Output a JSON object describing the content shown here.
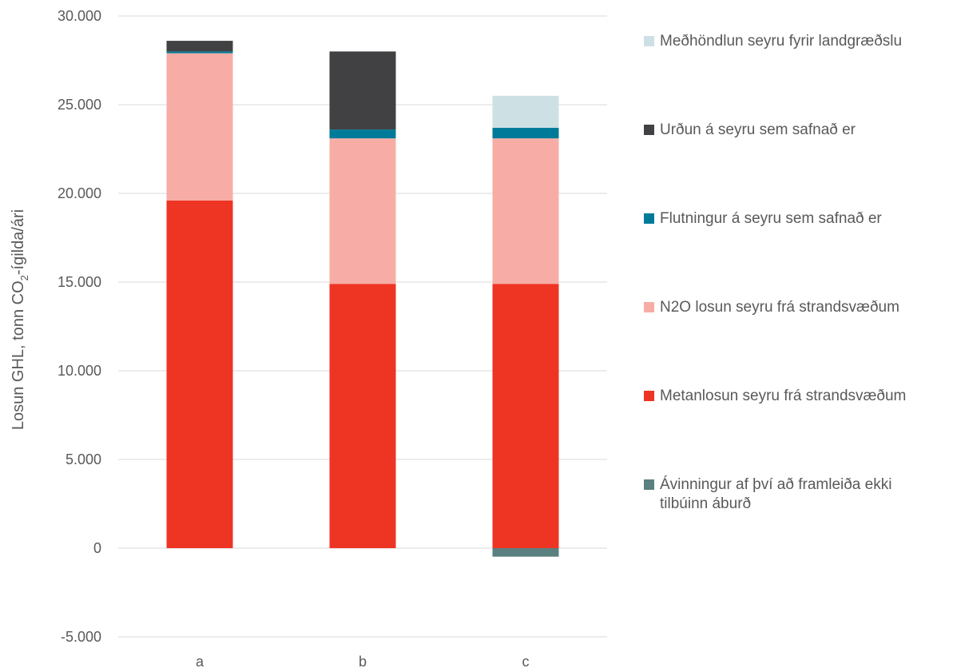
{
  "chart_data": {
    "type": "bar",
    "stacked": true,
    "title": "",
    "xlabel": "",
    "ylabel_main": "Losun GHL, tonn CO",
    "ylabel_sub": "2",
    "ylabel_tail": "-ígilda/ári",
    "ylim": [
      -5000,
      30000
    ],
    "y_ticks": [
      30000,
      25000,
      20000,
      15000,
      10000,
      5000,
      0,
      -5000
    ],
    "y_tick_labels": [
      "30.000",
      "25.000",
      "20.000",
      "15.000",
      "10.000",
      "5.000",
      "0",
      "-5.000"
    ],
    "categories": [
      "a",
      "b",
      "c"
    ],
    "grid": true,
    "legend_position": "right",
    "series": [
      {
        "name": "Ávinningur af því að framleiða ekki tilbúinn áburð",
        "color": "#5a8080",
        "values": [
          0,
          0,
          -480
        ]
      },
      {
        "name": "Metanlosun seyru frá strandsvæðum",
        "color": "#ee3524",
        "values": [
          19600,
          14900,
          14900
        ]
      },
      {
        "name": "N2O losun seyru frá strandsvæðum",
        "color": "#f7ada6",
        "values": [
          8300,
          8200,
          8200
        ]
      },
      {
        "name": "Flutningur á seyru sem safnað er",
        "color": "#007a99",
        "values": [
          100,
          500,
          600
        ]
      },
      {
        "name": "Urðun á seyru sem safnað er",
        "color": "#414143",
        "values": [
          600,
          4400,
          0
        ]
      },
      {
        "name": "Meðhöndlun seyru fyrir landgræðslu",
        "color": "#cde0e3",
        "values": [
          0,
          0,
          1800
        ]
      }
    ]
  }
}
